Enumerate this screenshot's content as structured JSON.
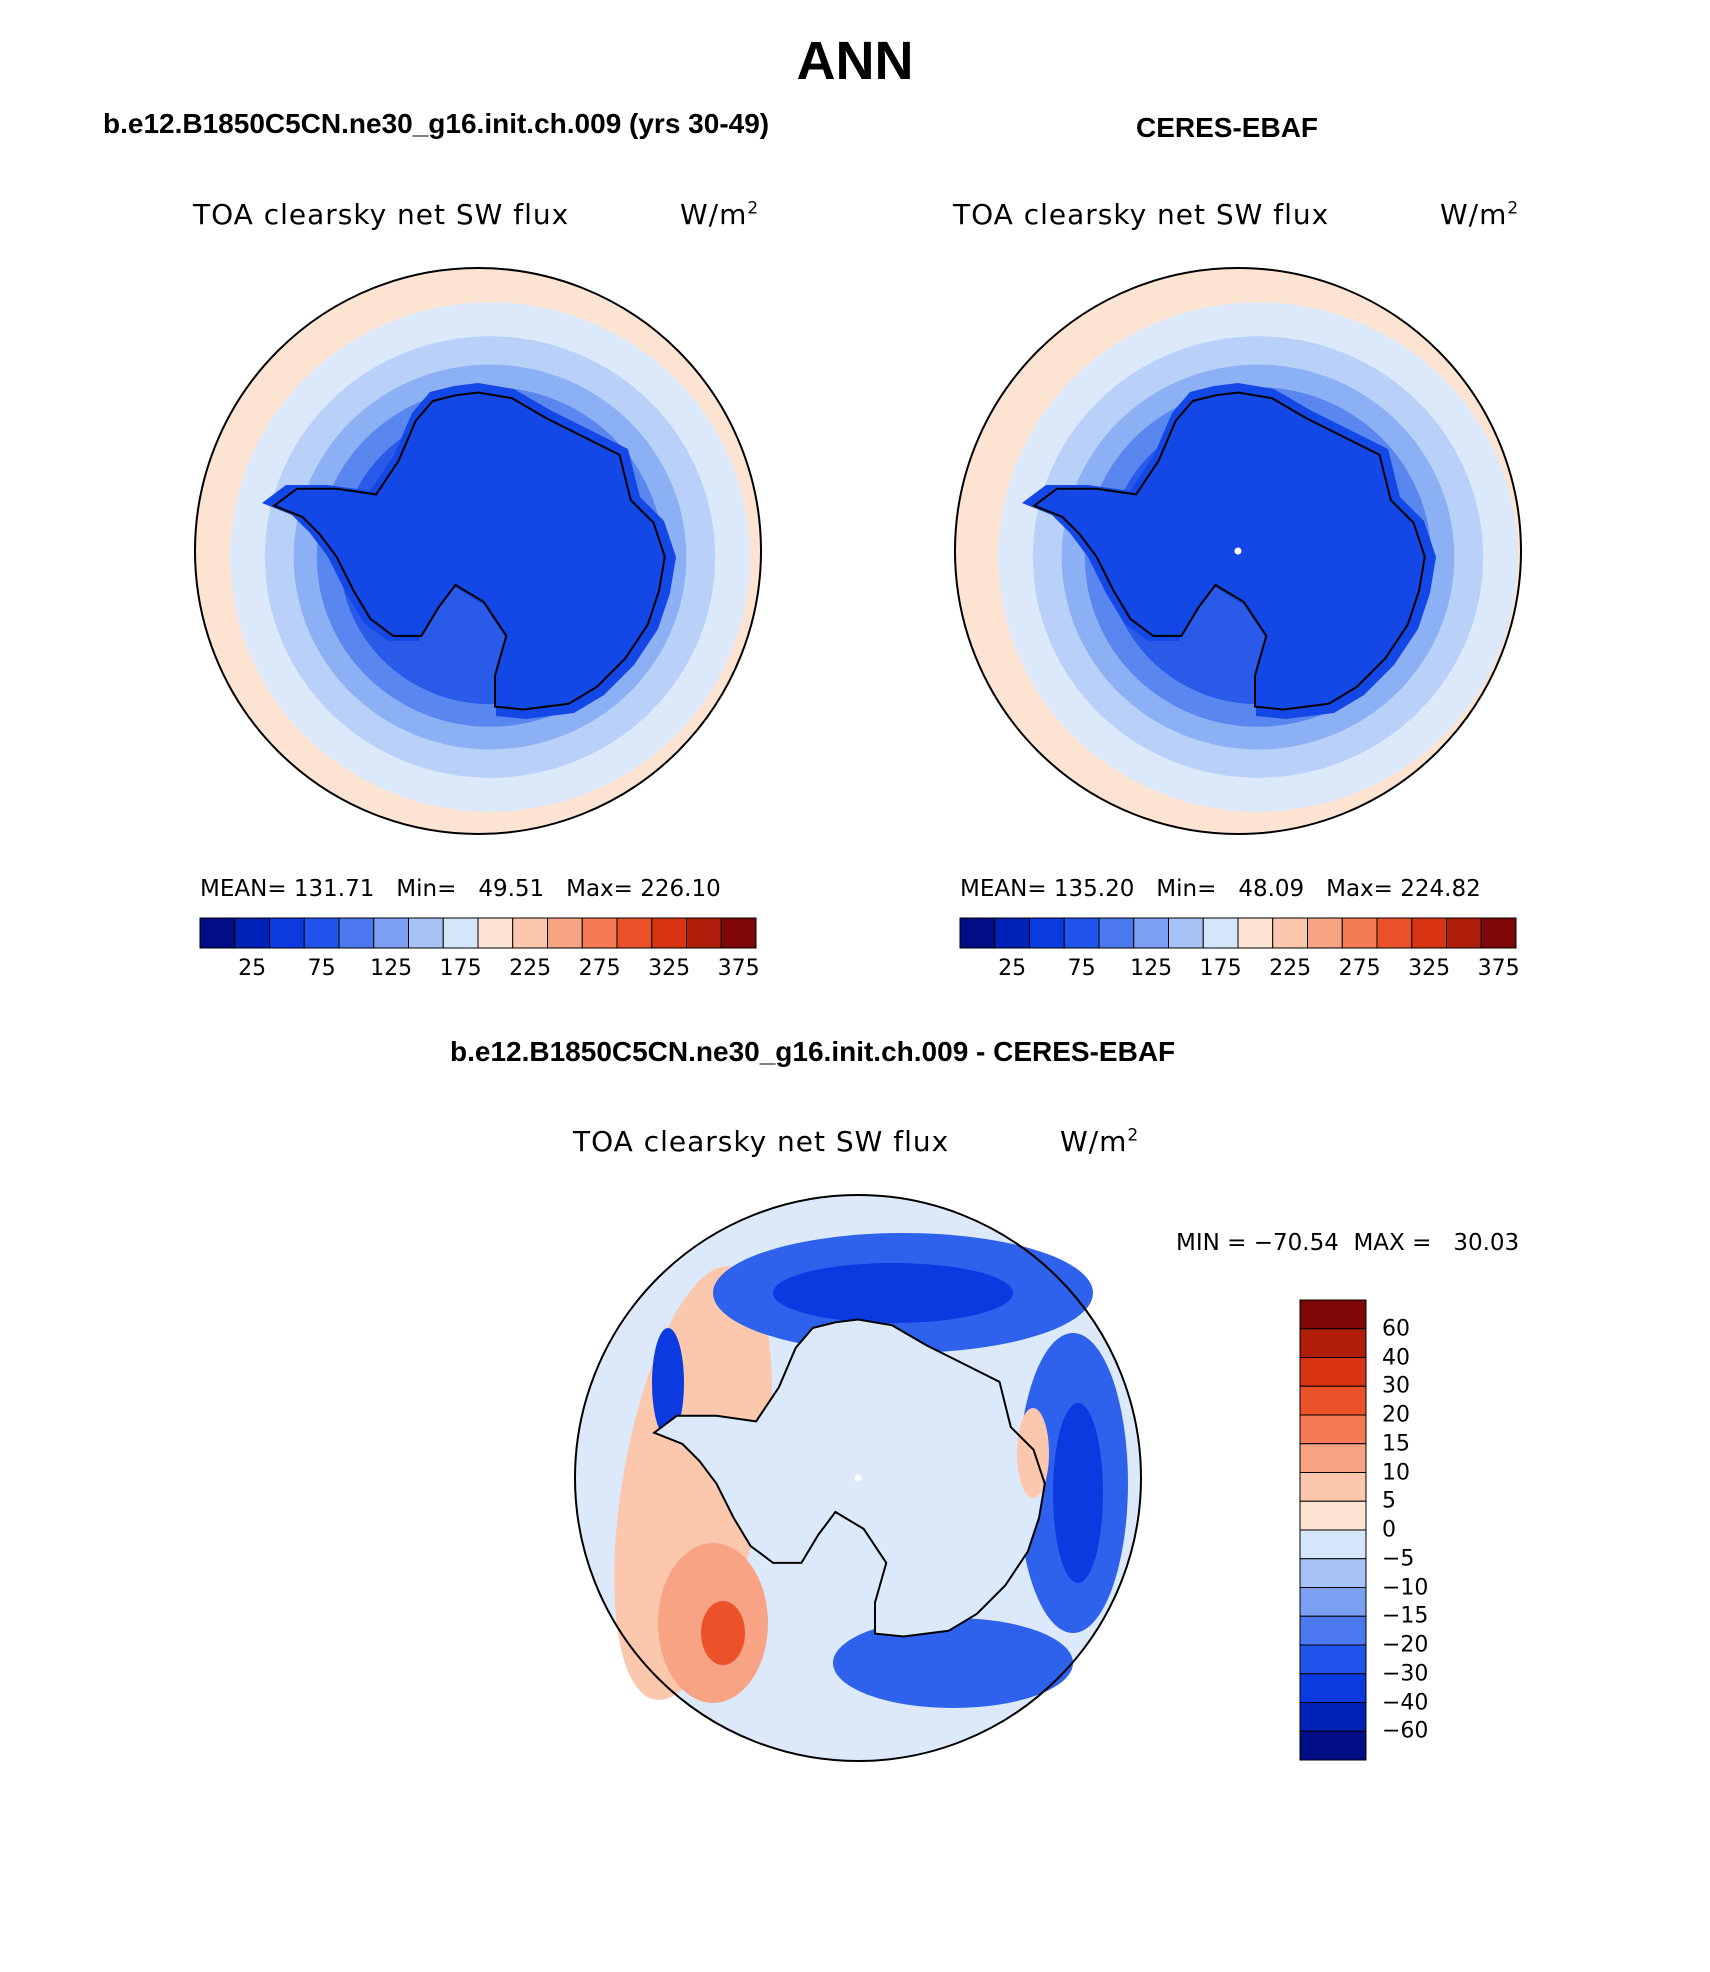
{
  "figure": {
    "title": "ANN",
    "panels": [
      {
        "heading": "b.e12.B1850C5CN.ne30_g16.init.ch.009 (yrs 30-49)",
        "variable": "TOA clearsky net SW flux",
        "units": "W/m",
        "units_exp": "2",
        "stats_text": "MEAN= 131.71   Min=   49.51   Max= 226.10",
        "mean": 131.71,
        "min": 49.51,
        "max": 226.1
      },
      {
        "heading": "CERES-EBAF",
        "variable": "TOA clearsky net SW flux",
        "units": "W/m",
        "units_exp": "2",
        "stats_text": "MEAN= 135.20   Min=   48.09   Max= 224.82",
        "mean": 135.2,
        "min": 48.09,
        "max": 224.82
      },
      {
        "heading": "b.e12.B1850C5CN.ne30_g16.init.ch.009 - CERES-EBAF",
        "variable": "TOA clearsky net SW flux",
        "units": "W/m",
        "units_exp": "2",
        "stats_text": "MIN = −70.54  MAX =   30.03",
        "min": -70.54,
        "max": 30.03
      }
    ]
  },
  "colorbars": {
    "abs_labels": [
      "25",
      "75",
      "125",
      "175",
      "225",
      "275",
      "325",
      "375"
    ],
    "abs_colors": [
      "#000d85",
      "#0022b8",
      "#0a3ae0",
      "#2054ec",
      "#4a78ee",
      "#7b9ff2",
      "#a7c2f6",
      "#d6e6fa",
      "#fde4d2",
      "#fbc8ae",
      "#f8a384",
      "#f47b55",
      "#ec522a",
      "#d93414",
      "#b01d0a",
      "#7e0808"
    ],
    "diff_labels": [
      "60",
      "40",
      "30",
      "20",
      "15",
      "10",
      "5",
      "0",
      "−5",
      "−10",
      "−15",
      "−20",
      "−30",
      "−40",
      "−60"
    ],
    "diff_colors": [
      "#7e0808",
      "#b01d0a",
      "#d93414",
      "#ec522a",
      "#f47b55",
      "#f8a384",
      "#fbc8ae",
      "#fde4d2",
      "#d6e6fa",
      "#a7c2f6",
      "#7b9ff2",
      "#4a78ee",
      "#2054ec",
      "#0a3ae0",
      "#0022b8",
      "#000d85"
    ]
  },
  "map_colors": {
    "continent": "#1448e6",
    "ring1": "#2a5ae8",
    "ring2": "#5a86ef",
    "ring3": "#8cb0f4",
    "ring4": "#b9d0f8",
    "ring5": "#dbe9fb",
    "outer": "#fde4d2",
    "diff_bg": "#dbe9fb",
    "diff_neg_strong": "#0a3ae0",
    "diff_neg_mid": "#2f62ec",
    "diff_neg_light": "#7ea2f2",
    "diff_pos_light": "#fbc8ae",
    "diff_pos_mid": "#f8a384",
    "diff_pos_strong": "#ec522a"
  }
}
